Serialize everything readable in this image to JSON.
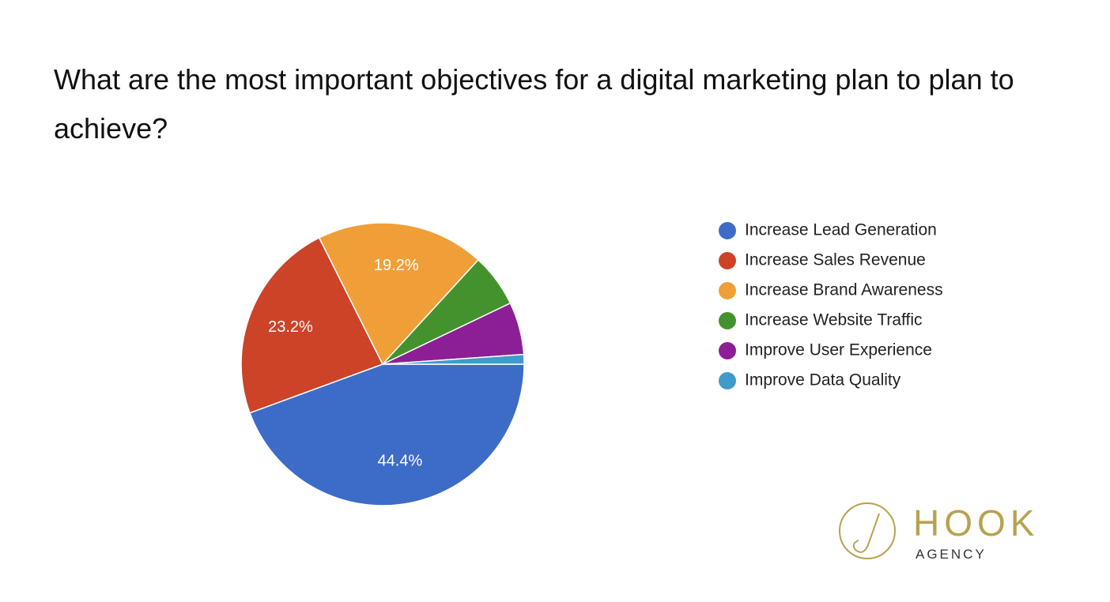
{
  "chart_data": {
    "type": "pie",
    "title": "What are the most important objectives for a digital marketing plan to plan to achieve?",
    "categories": [
      "Increase Lead Generation",
      "Increase Sales Revenue",
      "Increase Brand Awareness",
      "Increase Website Traffic",
      "Improve User Experience",
      "Improve Data Quality"
    ],
    "values": [
      44.4,
      23.2,
      19.2,
      6.1,
      6.0,
      1.1
    ],
    "value_labels": [
      "44.4%",
      "23.2%",
      "19.2%",
      null,
      null,
      null
    ],
    "colors": [
      "#3d6cc8",
      "#cc4328",
      "#f09f38",
      "#44922e",
      "#8c1f95",
      "#3f9bc9"
    ],
    "legend": "right"
  },
  "logo": {
    "name": "HOOK",
    "tagline": "AGENCY"
  }
}
